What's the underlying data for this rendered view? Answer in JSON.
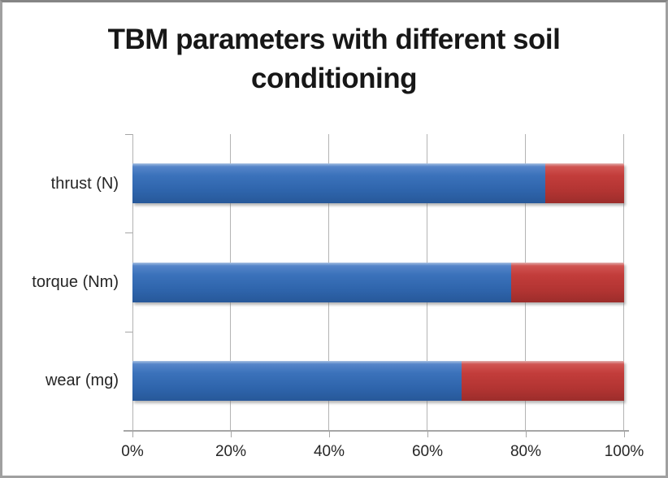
{
  "title": {
    "text": "TBM parameters with different soil conditioning",
    "line1": "TBM parameters with different soil",
    "line2": "conditioning"
  },
  "chart_data": {
    "type": "bar",
    "orientation": "horizontal",
    "stacked": true,
    "title": "TBM parameters with different soil conditioning",
    "categories": [
      "thrust (N)",
      "torque (Nm)",
      "wear (mg)"
    ],
    "series": [
      {
        "name": "series-blue",
        "color": "#3b72bb",
        "values": [
          84,
          77,
          67
        ]
      },
      {
        "name": "series-red",
        "color": "#c33d3b",
        "values": [
          16,
          23,
          33
        ]
      }
    ],
    "value_unit": "%",
    "xlim": [
      0,
      100
    ],
    "x_tick_values": [
      0,
      20,
      40,
      60,
      80,
      100
    ],
    "x_tick_labels": [
      "0%",
      "20%",
      "40%",
      "60%",
      "80%",
      "100%"
    ],
    "grid": true,
    "legend": false
  },
  "colors": {
    "bar_blue": "#3b72bb",
    "bar_red": "#c33d3b",
    "gridline": "#b3b3b3",
    "axis": "#a6a6a6",
    "text": "#262626",
    "title_text": "#171717",
    "background": "#ffffff",
    "frame_border": "#a0a0a0"
  }
}
